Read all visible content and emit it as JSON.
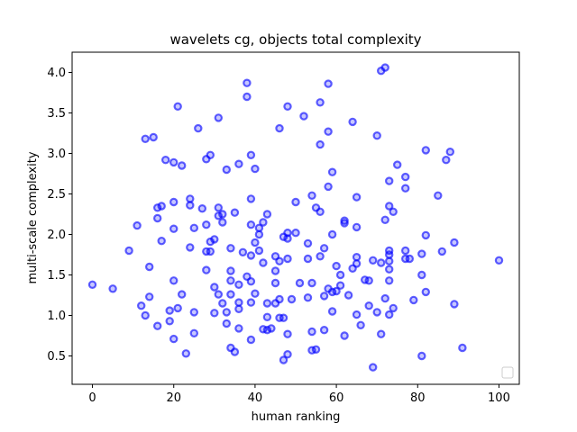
{
  "chart_data": {
    "type": "scatter",
    "title": "wavelets cg, objects total complexity",
    "xlabel": "human ranking",
    "ylabel": "multi-scale complexity",
    "xlim": [
      -5,
      105
    ],
    "ylim": [
      0.15,
      4.25
    ],
    "xticks": [
      0,
      20,
      40,
      60,
      80,
      100
    ],
    "yticks": [
      0.5,
      1.0,
      1.5,
      2.0,
      2.5,
      3.0,
      3.5,
      4.0
    ],
    "xtick_labels": [
      "0",
      "20",
      "40",
      "60",
      "80",
      "100"
    ],
    "ytick_labels": [
      "0.5",
      "1.0",
      "1.5",
      "2.0",
      "2.5",
      "3.0",
      "3.5",
      "4.0"
    ],
    "grid": false,
    "legend": "lower-right (empty)",
    "marker_color": "#0000ff",
    "series": [
      {
        "points": [
          [
            0,
            1.38
          ],
          [
            5,
            1.33
          ],
          [
            9,
            1.8
          ],
          [
            11,
            2.11
          ],
          [
            12,
            1.12
          ],
          [
            13,
            3.18
          ],
          [
            13,
            1.0
          ],
          [
            14,
            1.6
          ],
          [
            14,
            1.23
          ],
          [
            15,
            3.2
          ],
          [
            16,
            2.33
          ],
          [
            16,
            2.2
          ],
          [
            16,
            0.87
          ],
          [
            17,
            2.35
          ],
          [
            17,
            1.92
          ],
          [
            18,
            2.92
          ],
          [
            19,
            1.06
          ],
          [
            19,
            0.93
          ],
          [
            20,
            0.71
          ],
          [
            20,
            2.89
          ],
          [
            20,
            2.4
          ],
          [
            20,
            2.07
          ],
          [
            20,
            1.43
          ],
          [
            21,
            1.09
          ],
          [
            21,
            3.58
          ],
          [
            22,
            1.26
          ],
          [
            22,
            2.85
          ],
          [
            23,
            0.53
          ],
          [
            24,
            2.44
          ],
          [
            24,
            2.36
          ],
          [
            24,
            1.84
          ],
          [
            25,
            2.08
          ],
          [
            25,
            1.04
          ],
          [
            25,
            0.78
          ],
          [
            26,
            3.31
          ],
          [
            27,
            2.32
          ],
          [
            28,
            2.93
          ],
          [
            28,
            2.12
          ],
          [
            28,
            1.79
          ],
          [
            28,
            1.56
          ],
          [
            29,
            2.98
          ],
          [
            29,
            1.91
          ],
          [
            29,
            1.79
          ],
          [
            30,
            1.94
          ],
          [
            30,
            1.35
          ],
          [
            30,
            1.03
          ],
          [
            31,
            3.44
          ],
          [
            31,
            2.33
          ],
          [
            31,
            2.23
          ],
          [
            31,
            1.26
          ],
          [
            32,
            2.25
          ],
          [
            32,
            2.15
          ],
          [
            32,
            1.15
          ],
          [
            33,
            2.8
          ],
          [
            33,
            1.04
          ],
          [
            33,
            0.9
          ],
          [
            34,
            1.83
          ],
          [
            34,
            1.55
          ],
          [
            34,
            1.43
          ],
          [
            34,
            1.26
          ],
          [
            34,
            0.6
          ],
          [
            35,
            2.27
          ],
          [
            35,
            0.55
          ],
          [
            36,
            2.87
          ],
          [
            36,
            1.38
          ],
          [
            36,
            1.16
          ],
          [
            36,
            1.08
          ],
          [
            36,
            0.84
          ],
          [
            37,
            1.78
          ],
          [
            38,
            3.87
          ],
          [
            38,
            3.7
          ],
          [
            38,
            1.48
          ],
          [
            39,
            2.98
          ],
          [
            39,
            2.44
          ],
          [
            39,
            2.12
          ],
          [
            39,
            1.74
          ],
          [
            39,
            1.42
          ],
          [
            39,
            1.16
          ],
          [
            39,
            0.7
          ],
          [
            40,
            2.81
          ],
          [
            40,
            1.9
          ],
          [
            40,
            1.27
          ],
          [
            41,
            2.08
          ],
          [
            41,
            2.0
          ],
          [
            41,
            1.8
          ],
          [
            42,
            2.15
          ],
          [
            42,
            1.65
          ],
          [
            42,
            0.83
          ],
          [
            43,
            2.25
          ],
          [
            43,
            1.15
          ],
          [
            43,
            0.98
          ],
          [
            43,
            0.82
          ],
          [
            44,
            0.84
          ],
          [
            45,
            1.73
          ],
          [
            45,
            1.55
          ],
          [
            45,
            1.4
          ],
          [
            45,
            1.15
          ],
          [
            46,
            3.31
          ],
          [
            46,
            1.67
          ],
          [
            46,
            1.2
          ],
          [
            46,
            0.97
          ],
          [
            47,
            1.97
          ],
          [
            47,
            0.97
          ],
          [
            47,
            0.45
          ],
          [
            48,
            3.58
          ],
          [
            48,
            2.02
          ],
          [
            48,
            1.95
          ],
          [
            48,
            1.7
          ],
          [
            48,
            0.77
          ],
          [
            48,
            0.52
          ],
          [
            49,
            1.2
          ],
          [
            50,
            2.4
          ],
          [
            50,
            2.02
          ],
          [
            51,
            1.4
          ],
          [
            52,
            3.46
          ],
          [
            53,
            1.89
          ],
          [
            53,
            1.7
          ],
          [
            53,
            1.22
          ],
          [
            54,
            2.48
          ],
          [
            54,
            1.4
          ],
          [
            54,
            0.8
          ],
          [
            54,
            0.57
          ],
          [
            55,
            2.33
          ],
          [
            55,
            0.58
          ],
          [
            56,
            3.63
          ],
          [
            56,
            3.11
          ],
          [
            56,
            2.28
          ],
          [
            56,
            1.73
          ],
          [
            57,
            1.83
          ],
          [
            57,
            1.24
          ],
          [
            57,
            0.82
          ],
          [
            58,
            3.86
          ],
          [
            58,
            3.27
          ],
          [
            58,
            2.59
          ],
          [
            58,
            1.33
          ],
          [
            59,
            2.77
          ],
          [
            59,
            2.0
          ],
          [
            59,
            1.29
          ],
          [
            59,
            1.05
          ],
          [
            60,
            1.61
          ],
          [
            60,
            1.3
          ],
          [
            61,
            1.5
          ],
          [
            61,
            1.37
          ],
          [
            62,
            2.17
          ],
          [
            62,
            2.14
          ],
          [
            62,
            0.75
          ],
          [
            63,
            1.25
          ],
          [
            64,
            3.39
          ],
          [
            64,
            1.58
          ],
          [
            65,
            2.46
          ],
          [
            65,
            2.09
          ],
          [
            65,
            1.72
          ],
          [
            65,
            1.64
          ],
          [
            65,
            1.01
          ],
          [
            66,
            0.88
          ],
          [
            67,
            1.44
          ],
          [
            68,
            1.43
          ],
          [
            68,
            1.12
          ],
          [
            69,
            1.68
          ],
          [
            69,
            0.36
          ],
          [
            70,
            3.22
          ],
          [
            70,
            1.04
          ],
          [
            71,
            4.02
          ],
          [
            71,
            1.65
          ],
          [
            71,
            0.77
          ],
          [
            72,
            4.06
          ],
          [
            72,
            2.18
          ],
          [
            72,
            1.21
          ],
          [
            73,
            2.66
          ],
          [
            73,
            2.35
          ],
          [
            73,
            1.8
          ],
          [
            73,
            1.75
          ],
          [
            73,
            1.67
          ],
          [
            73,
            1.57
          ],
          [
            73,
            1.43
          ],
          [
            73,
            1.01
          ],
          [
            74,
            2.28
          ],
          [
            74,
            1.09
          ],
          [
            75,
            2.86
          ],
          [
            77,
            2.71
          ],
          [
            77,
            2.57
          ],
          [
            77,
            1.8
          ],
          [
            77,
            1.7
          ],
          [
            78,
            1.7
          ],
          [
            79,
            1.19
          ],
          [
            81,
            1.76
          ],
          [
            81,
            1.5
          ],
          [
            81,
            0.5
          ],
          [
            82,
            3.04
          ],
          [
            82,
            1.99
          ],
          [
            82,
            1.29
          ],
          [
            85,
            2.48
          ],
          [
            86,
            1.79
          ],
          [
            87,
            2.92
          ],
          [
            88,
            3.02
          ],
          [
            89,
            1.9
          ],
          [
            89,
            1.14
          ],
          [
            91,
            0.6
          ],
          [
            100,
            1.68
          ]
        ]
      }
    ]
  }
}
